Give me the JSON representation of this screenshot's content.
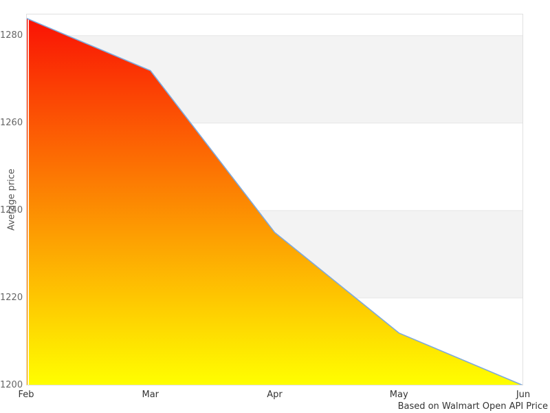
{
  "chart_data": {
    "type": "area",
    "title": "",
    "ylabel": "Average price",
    "caption": "Based on Walmart Open API Price",
    "x_categories": [
      "Feb",
      "Mar",
      "Apr",
      "May",
      "Jun"
    ],
    "values": [
      1284,
      1272,
      1235,
      1212,
      1200
    ],
    "ylim": [
      1200,
      1285
    ],
    "yticks": [
      1200,
      1220,
      1240,
      1260,
      1280
    ],
    "grid_bands_between": [
      [
        1260,
        1280
      ],
      [
        1220,
        1240
      ]
    ],
    "legend": "none",
    "grid": "horizontal-bands",
    "colors": {
      "background": "#ffffff",
      "band_fill": "#f3f3f3",
      "grid_line": "#e6e6e6",
      "plot_border": "#e0e0e0",
      "series_line": "#7ea9dc",
      "area_gradient_top": "#fa1205",
      "area_gradient_bottom": "#ffff00",
      "left_edge_stripe_top": "#fa1205",
      "left_edge_stripe_bottom": "#ffa000",
      "y_tick_label": "#666666",
      "x_tick_label": "#333333",
      "axis_title": "#555555",
      "caption_text": "#333333"
    }
  }
}
